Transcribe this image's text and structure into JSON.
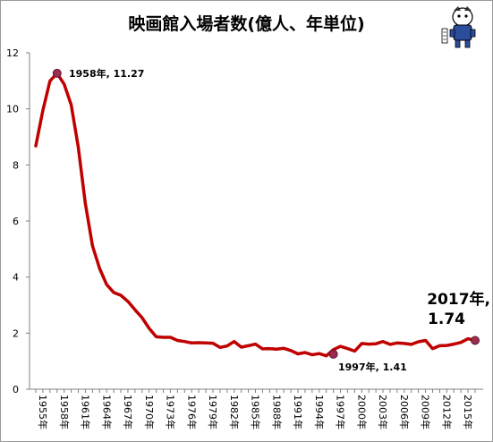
{
  "chart_data": {
    "type": "line",
    "title": "映画館入場者数(億人、年単位)",
    "xlabel": "",
    "ylabel": "",
    "ylim": [
      0,
      12
    ],
    "yticks": [
      0,
      2,
      4,
      6,
      8,
      10,
      12
    ],
    "grid": false,
    "legend": "none",
    "line_color": "#c00000",
    "marker_color": "#9b2c50",
    "xtick_labels": [
      "1955年",
      "1958年",
      "1961年",
      "1964年",
      "1967年",
      "1970年",
      "1973年",
      "1976年",
      "1979年",
      "1982年",
      "1985年",
      "1988年",
      "1991年",
      "1994年",
      "1997年",
      "2000年",
      "2003年",
      "2006年",
      "2009年",
      "2012年",
      "2015年"
    ],
    "series": [
      {
        "x": [
          1955,
          1956,
          1957,
          1958,
          1959,
          1960,
          1961,
          1962,
          1963,
          1964,
          1965,
          1966,
          1967,
          1968,
          1969,
          1970,
          1971,
          1972,
          1973,
          1974,
          1975,
          1976,
          1977,
          1978,
          1979,
          1980,
          1981,
          1982,
          1983,
          1984,
          1985,
          1986,
          1987,
          1988,
          1989,
          1990,
          1991,
          1992,
          1993,
          1994,
          1995,
          1996,
          1997,
          1998,
          1999,
          2000,
          2001,
          2002,
          2003,
          2004,
          2005,
          2006,
          2007,
          2008,
          2009,
          2010,
          2011,
          2012,
          2013,
          2014,
          2015,
          2016,
          2017
        ],
        "values": [
          8.68,
          9.94,
          10.99,
          11.27,
          10.88,
          10.14,
          8.63,
          6.62,
          5.11,
          4.31,
          3.73,
          3.45,
          3.35,
          3.13,
          2.83,
          2.55,
          2.17,
          1.87,
          1.85,
          1.85,
          1.74,
          1.7,
          1.65,
          1.66,
          1.65,
          1.64,
          1.49,
          1.54,
          1.7,
          1.5,
          1.55,
          1.61,
          1.44,
          1.45,
          1.43,
          1.46,
          1.38,
          1.26,
          1.31,
          1.23,
          1.27,
          1.19,
          1.41,
          1.53,
          1.45,
          1.36,
          1.63,
          1.61,
          1.62,
          1.7,
          1.6,
          1.65,
          1.63,
          1.6,
          1.69,
          1.74,
          1.45,
          1.55,
          1.56,
          1.61,
          1.67,
          1.8,
          1.74
        ]
      }
    ],
    "annotations": [
      {
        "label": "1958年, 11.27",
        "x": 1958,
        "y": 11.27
      },
      {
        "label": "1997年, 1.41",
        "x": 1997,
        "y": 1.41
      },
      {
        "label_line1": "2017年,",
        "label_line2": "1.74",
        "x": 2017,
        "y": 1.74
      }
    ]
  }
}
